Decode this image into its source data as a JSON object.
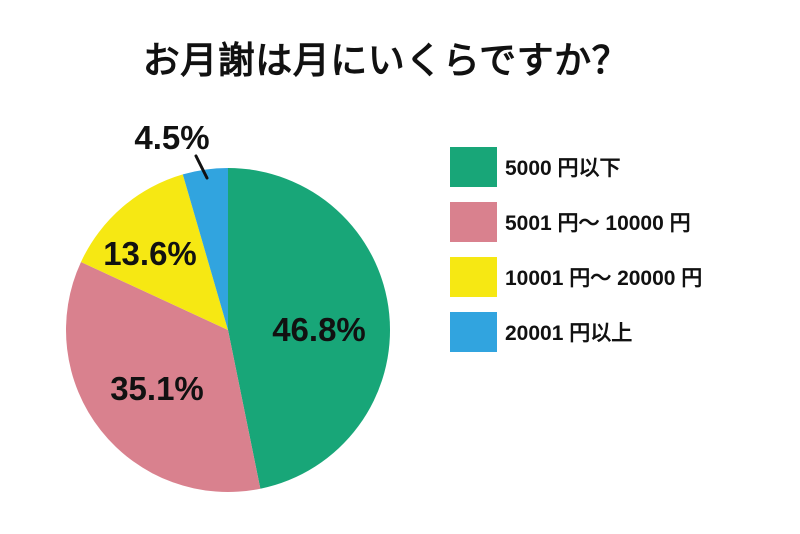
{
  "page": {
    "background": "#ffffff",
    "text_color": "#111111"
  },
  "chart_data": {
    "type": "pie",
    "title": "お月謝は月にいくらですか？",
    "unit": "%",
    "start_angle_deg": 0,
    "direction": "clockwise",
    "legend_position": "right",
    "slices": [
      {
        "label": "5000 円以下",
        "value": 46.8,
        "display": "46.8%",
        "color": "#18a678"
      },
      {
        "label": "5001 円〜 10000 円",
        "value": 35.1,
        "display": "35.1%",
        "color": "#d9818e"
      },
      {
        "label": "10001 円〜 20000 円",
        "value": 13.6,
        "display": "13.6%",
        "color": "#f6e813"
      },
      {
        "label": "20001 円以上",
        "value": 4.5,
        "display": "4.5%",
        "color": "#31a4df"
      }
    ]
  }
}
